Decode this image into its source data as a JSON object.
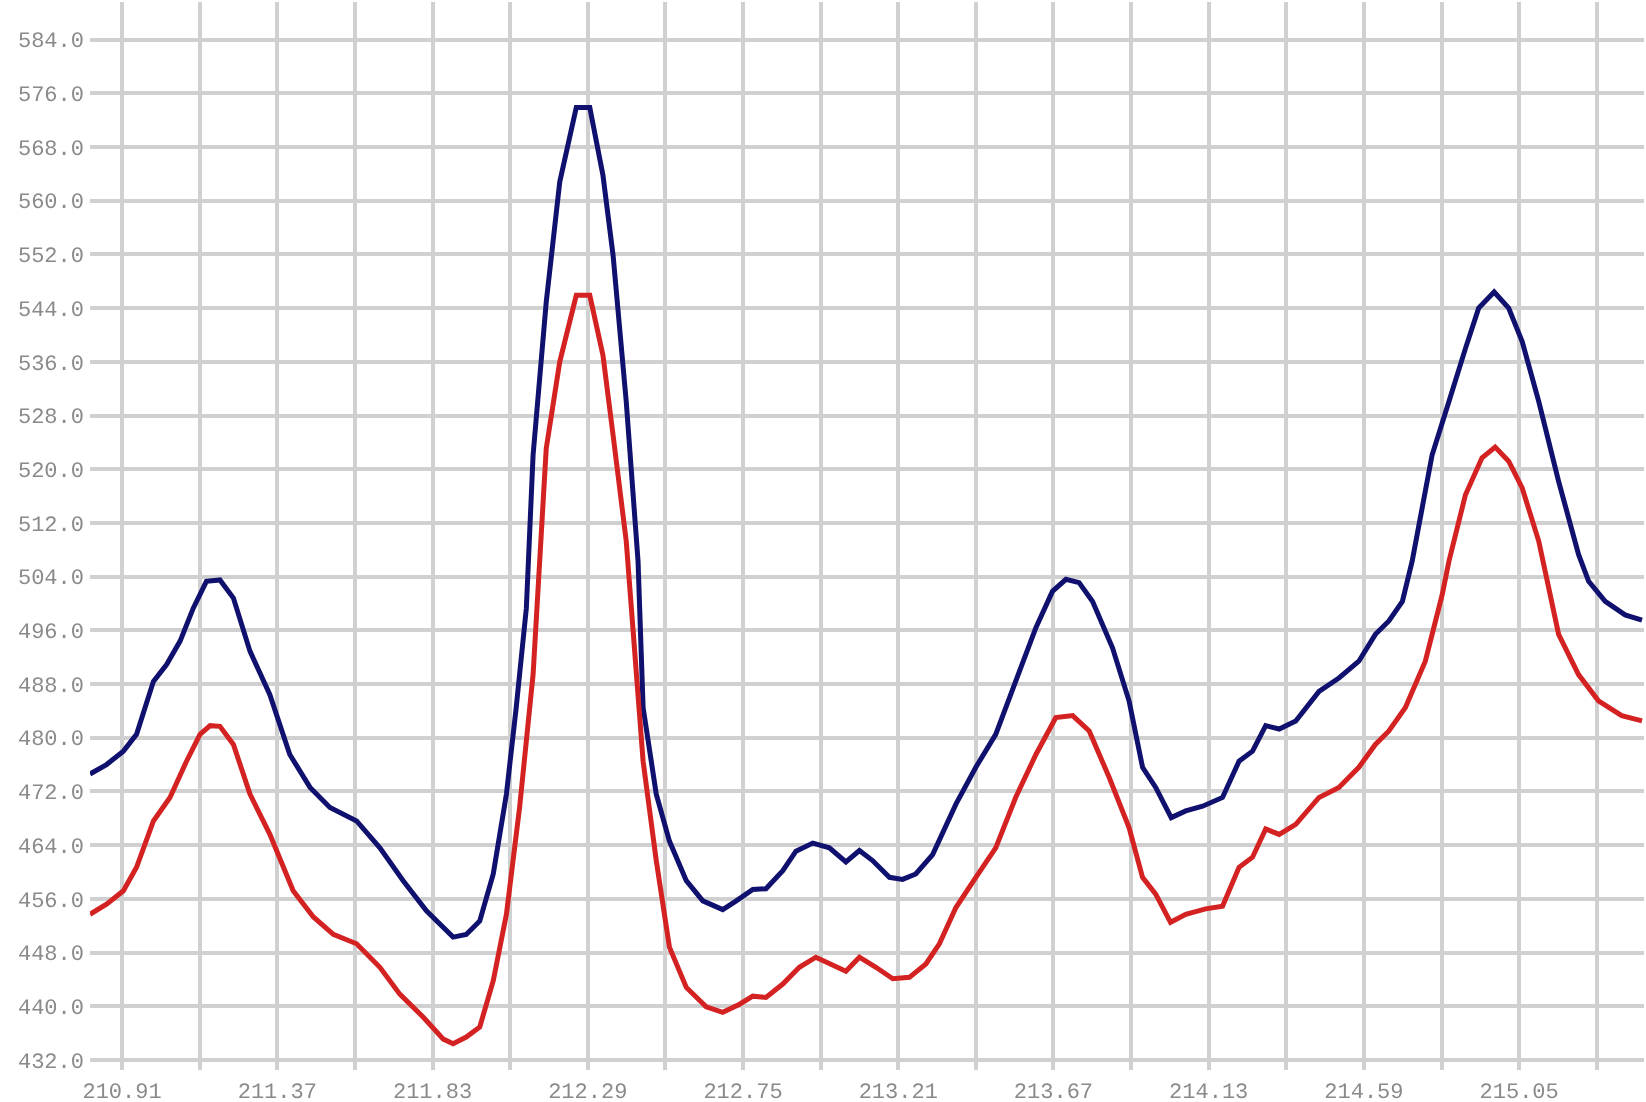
{
  "chart_data": {
    "type": "line",
    "grid": true,
    "xlim": [
      210.815,
      215.42
    ],
    "ylim": [
      430.5,
      589.6
    ],
    "xticks": [
      {
        "value": 210.91,
        "label": "210.91"
      },
      {
        "value": 211.14,
        "label": null
      },
      {
        "value": 211.37,
        "label": "211.37"
      },
      {
        "value": 211.6,
        "label": null
      },
      {
        "value": 211.83,
        "label": "211.83"
      },
      {
        "value": 212.06,
        "label": null
      },
      {
        "value": 212.29,
        "label": "212.29"
      },
      {
        "value": 212.52,
        "label": null
      },
      {
        "value": 212.75,
        "label": "212.75"
      },
      {
        "value": 212.98,
        "label": null
      },
      {
        "value": 213.21,
        "label": "213.21"
      },
      {
        "value": 213.44,
        "label": null
      },
      {
        "value": 213.67,
        "label": "213.67"
      },
      {
        "value": 213.9,
        "label": null
      },
      {
        "value": 214.13,
        "label": "214.13"
      },
      {
        "value": 214.36,
        "label": null
      },
      {
        "value": 214.59,
        "label": "214.59"
      },
      {
        "value": 214.82,
        "label": null
      },
      {
        "value": 215.05,
        "label": "215.05"
      },
      {
        "value": 215.28,
        "label": null
      }
    ],
    "yticks": [
      {
        "value": 432,
        "label": "432.0"
      },
      {
        "value": 440,
        "label": "440.0"
      },
      {
        "value": 448,
        "label": "448.0"
      },
      {
        "value": 456,
        "label": "456.0"
      },
      {
        "value": 464,
        "label": "464.0"
      },
      {
        "value": 472,
        "label": "472.0"
      },
      {
        "value": 480,
        "label": "480.0"
      },
      {
        "value": 488,
        "label": "488.0"
      },
      {
        "value": 496,
        "label": "496.0"
      },
      {
        "value": 504,
        "label": "504.0"
      },
      {
        "value": 512,
        "label": "512.0"
      },
      {
        "value": 520,
        "label": "520.0"
      },
      {
        "value": 528,
        "label": "528.0"
      },
      {
        "value": 536,
        "label": "536.0"
      },
      {
        "value": 544,
        "label": "544.0"
      },
      {
        "value": 552,
        "label": "552.0"
      },
      {
        "value": 560,
        "label": "560.0"
      },
      {
        "value": 568,
        "label": "568.0"
      },
      {
        "value": 576,
        "label": "576.0"
      },
      {
        "value": 584,
        "label": "584.0"
      }
    ],
    "series": [
      {
        "color": "#10106e",
        "x": [
          210.815,
          210.864,
          210.914,
          210.953,
          211.003,
          211.042,
          211.082,
          211.121,
          211.16,
          211.2,
          211.24,
          211.289,
          211.348,
          211.407,
          211.467,
          211.526,
          211.605,
          211.674,
          211.743,
          211.812,
          211.891,
          211.93,
          211.97,
          212.01,
          212.049,
          212.078,
          212.108,
          212.128,
          212.167,
          212.207,
          212.256,
          212.296,
          212.335,
          212.365,
          212.404,
          212.439,
          212.454,
          212.493,
          212.532,
          212.582,
          212.631,
          212.69,
          212.73,
          212.779,
          212.818,
          212.868,
          212.907,
          212.957,
          213.006,
          213.055,
          213.095,
          213.134,
          213.184,
          213.223,
          213.262,
          213.312,
          213.381,
          213.44,
          213.499,
          213.558,
          213.618,
          213.667,
          213.707,
          213.746,
          213.786,
          213.845,
          213.894,
          213.934,
          213.973,
          214.019,
          214.062,
          214.112,
          214.171,
          214.22,
          214.26,
          214.299,
          214.339,
          214.388,
          214.457,
          214.516,
          214.575,
          214.624,
          214.664,
          214.704,
          214.733,
          214.792,
          214.842,
          214.891,
          214.93,
          214.976,
          215.019,
          215.059,
          215.108,
          215.167,
          215.226,
          215.256,
          215.305,
          215.364,
          215.414
        ],
        "values": [
          474.6,
          476.0,
          478.0,
          480.5,
          488.4,
          490.9,
          494.4,
          499.3,
          503.3,
          503.5,
          500.8,
          492.9,
          486.4,
          477.5,
          472.6,
          469.6,
          467.6,
          463.6,
          458.7,
          454.2,
          450.3,
          450.7,
          452.7,
          459.7,
          471.6,
          484.5,
          499.3,
          522.1,
          544.9,
          562.8,
          573.9,
          573.9,
          563.8,
          551.9,
          530.1,
          506.3,
          484.5,
          471.6,
          464.6,
          458.7,
          455.7,
          454.4,
          455.7,
          457.4,
          457.5,
          460.2,
          463.1,
          464.3,
          463.6,
          461.5,
          463.2,
          461.7,
          459.2,
          458.9,
          459.7,
          462.6,
          470.1,
          475.6,
          480.5,
          488.4,
          496.4,
          501.8,
          503.6,
          503.1,
          500.3,
          493.4,
          485.5,
          475.6,
          472.6,
          468.1,
          469.1,
          469.8,
          471.1,
          476.5,
          478.0,
          481.8,
          481.3,
          482.5,
          486.9,
          488.9,
          491.4,
          495.4,
          497.4,
          500.3,
          506.3,
          522.1,
          530.1,
          538.0,
          544.0,
          546.4,
          544.0,
          539.0,
          530.1,
          518.2,
          507.3,
          503.3,
          500.3,
          498.3,
          497.5
        ]
      },
      {
        "color": "#d42222",
        "x": [
          210.815,
          210.864,
          210.914,
          210.953,
          211.003,
          211.052,
          211.101,
          211.141,
          211.171,
          211.2,
          211.24,
          211.289,
          211.348,
          211.417,
          211.477,
          211.536,
          211.605,
          211.674,
          211.733,
          211.802,
          211.862,
          211.891,
          211.93,
          211.97,
          212.01,
          212.049,
          212.088,
          212.128,
          212.167,
          212.207,
          212.256,
          212.296,
          212.335,
          212.365,
          212.404,
          212.454,
          212.493,
          212.532,
          212.582,
          212.641,
          212.69,
          212.74,
          212.779,
          212.818,
          212.868,
          212.917,
          212.966,
          213.055,
          213.095,
          213.144,
          213.194,
          213.243,
          213.292,
          213.332,
          213.381,
          213.44,
          213.499,
          213.558,
          213.618,
          213.677,
          213.727,
          213.776,
          213.835,
          213.894,
          213.934,
          213.973,
          214.017,
          214.062,
          214.121,
          214.171,
          214.22,
          214.26,
          214.299,
          214.339,
          214.388,
          214.457,
          214.516,
          214.575,
          214.624,
          214.664,
          214.713,
          214.772,
          214.822,
          214.842,
          214.891,
          214.94,
          214.979,
          215.019,
          215.059,
          215.108,
          215.167,
          215.226,
          215.285,
          215.354,
          215.414
        ],
        "values": [
          453.7,
          455.2,
          457.2,
          460.7,
          467.6,
          471.1,
          476.5,
          480.5,
          481.8,
          481.7,
          479.0,
          471.6,
          465.6,
          457.2,
          453.3,
          450.7,
          449.3,
          445.8,
          441.8,
          438.4,
          435.1,
          434.4,
          435.4,
          436.9,
          443.8,
          453.7,
          469.6,
          489.4,
          523.1,
          536.0,
          545.9,
          545.9,
          537.0,
          525.1,
          509.3,
          476.5,
          461.7,
          448.8,
          442.8,
          439.9,
          439.1,
          440.3,
          441.5,
          441.3,
          443.3,
          445.8,
          447.3,
          445.2,
          447.3,
          445.8,
          444.1,
          444.3,
          446.3,
          449.3,
          454.7,
          459.2,
          463.6,
          471.1,
          477.5,
          483.0,
          483.3,
          481.0,
          474.1,
          466.6,
          459.2,
          456.7,
          452.5,
          453.7,
          454.5,
          454.9,
          460.7,
          462.2,
          466.4,
          465.6,
          467.1,
          471.1,
          472.6,
          475.6,
          479.0,
          481.0,
          484.5,
          491.4,
          501.3,
          506.3,
          516.2,
          521.7,
          523.3,
          521.2,
          517.2,
          509.3,
          495.4,
          489.4,
          485.5,
          483.3,
          482.5
        ]
      }
    ]
  }
}
